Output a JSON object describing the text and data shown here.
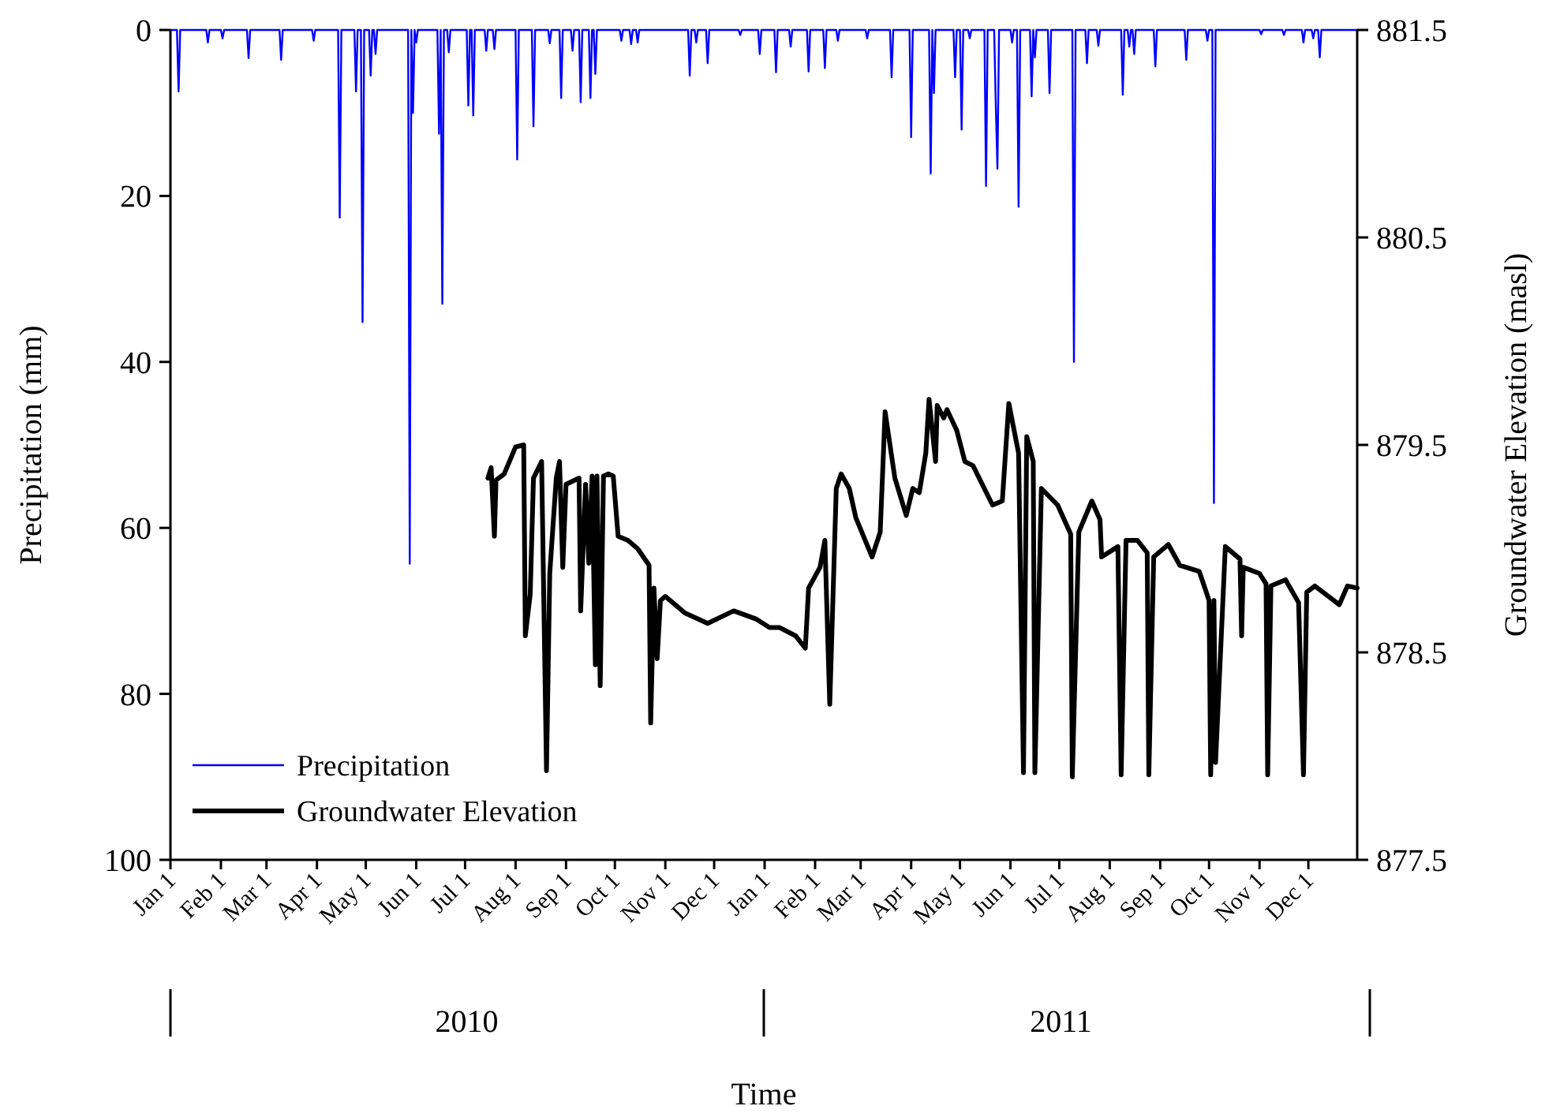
{
  "chart_data": {
    "type": "line",
    "xlabel": "Time",
    "ylabel": "Precipitation (mm)",
    "y2label": "Groundwater Elevation (masl)",
    "xlim": [
      "2010-01-01",
      "2011-12-31"
    ],
    "xticks": [
      {
        "value": "2010-01-01",
        "label": "Jan 1"
      },
      {
        "value": "2010-02-01",
        "label": "Feb 1"
      },
      {
        "value": "2010-03-01",
        "label": "Mar 1"
      },
      {
        "value": "2010-04-01",
        "label": "Apr 1"
      },
      {
        "value": "2010-05-01",
        "label": "May 1"
      },
      {
        "value": "2010-06-01",
        "label": "Jun 1"
      },
      {
        "value": "2010-07-01",
        "label": "Jul 1"
      },
      {
        "value": "2010-08-01",
        "label": "Aug 1"
      },
      {
        "value": "2010-09-01",
        "label": "Sep 1"
      },
      {
        "value": "2010-10-01",
        "label": "Oct 1"
      },
      {
        "value": "2010-11-01",
        "label": "Nov 1"
      },
      {
        "value": "2010-12-01",
        "label": "Dec 1"
      },
      {
        "value": "2011-01-01",
        "label": "Jan 1"
      },
      {
        "value": "2011-02-01",
        "label": "Feb 1"
      },
      {
        "value": "2011-03-01",
        "label": "Mar 1"
      },
      {
        "value": "2011-04-01",
        "label": "Apr 1"
      },
      {
        "value": "2011-05-01",
        "label": "May 1"
      },
      {
        "value": "2011-06-01",
        "label": "Jun 1"
      },
      {
        "value": "2011-07-01",
        "label": "Jul 1"
      },
      {
        "value": "2011-08-01",
        "label": "Aug 1"
      },
      {
        "value": "2011-09-01",
        "label": "Sep 1"
      },
      {
        "value": "2011-10-01",
        "label": "Oct 1"
      },
      {
        "value": "2011-11-01",
        "label": "Nov 1"
      },
      {
        "value": "2011-12-01",
        "label": "Dec 1"
      }
    ],
    "x2lim": [
      "2010-01-01",
      "2011-12-31"
    ],
    "x2ticks": [
      {
        "value": "2010-07-02",
        "label": "2010"
      },
      {
        "value": "2011-07-02",
        "label": "2011"
      }
    ],
    "ylim": [
      100,
      0
    ],
    "yticks": [
      0,
      20,
      40,
      60,
      80,
      100
    ],
    "y2lim": [
      877.5,
      881.5
    ],
    "y2ticks": [
      877.5,
      878.5,
      879.5,
      880.5,
      881.5
    ],
    "grid": false,
    "legend": "bottom left",
    "marker": "none",
    "line_style": "solid",
    "series": [
      {
        "name": "Precipitation",
        "color": "#0000ff",
        "axis": "y",
        "x": [
          "2010-01-01",
          "2010-01-05",
          "2010-01-06",
          "2010-01-07",
          "2010-01-23",
          "2010-01-24",
          "2010-01-25",
          "2010-02-01",
          "2010-02-02",
          "2010-02-03",
          "2010-02-17",
          "2010-02-18",
          "2010-02-19",
          "2010-03-09",
          "2010-03-10",
          "2010-03-11",
          "2010-03-29",
          "2010-03-30",
          "2010-03-31",
          "2010-04-14",
          "2010-04-15",
          "2010-04-16",
          "2010-04-24",
          "2010-04-25",
          "2010-04-26",
          "2010-04-28",
          "2010-04-29",
          "2010-04-30",
          "2010-05-03",
          "2010-05-04",
          "2010-05-05",
          "2010-05-06",
          "2010-05-07",
          "2010-05-08",
          "2010-05-27",
          "2010-05-28",
          "2010-05-29",
          "2010-05-30",
          "2010-05-31",
          "2010-06-01",
          "2010-06-02",
          "2010-06-14",
          "2010-06-15",
          "2010-06-16",
          "2010-06-17",
          "2010-06-18",
          "2010-06-20",
          "2010-06-21",
          "2010-06-22",
          "2010-07-02",
          "2010-07-03",
          "2010-07-04",
          "2010-07-05",
          "2010-07-06",
          "2010-07-07",
          "2010-07-13",
          "2010-07-14",
          "2010-07-15",
          "2010-07-18",
          "2010-07-19",
          "2010-07-20",
          "2010-08-01",
          "2010-08-02",
          "2010-08-03",
          "2010-08-11",
          "2010-08-12",
          "2010-08-13",
          "2010-08-21",
          "2010-08-22",
          "2010-08-23",
          "2010-08-28",
          "2010-08-29",
          "2010-08-30",
          "2010-09-04",
          "2010-09-05",
          "2010-09-06",
          "2010-09-09",
          "2010-09-10",
          "2010-09-11",
          "2010-09-15",
          "2010-09-16",
          "2010-09-17",
          "2010-09-18",
          "2010-09-19",
          "2010-09-20",
          "2010-10-04",
          "2010-10-05",
          "2010-10-06",
          "2010-10-10",
          "2010-10-11",
          "2010-10-12",
          "2010-10-14",
          "2010-10-15",
          "2010-10-16",
          "2010-11-15",
          "2010-11-16",
          "2010-11-17",
          "2010-11-19",
          "2010-11-20",
          "2010-11-21",
          "2010-11-26",
          "2010-11-27",
          "2010-11-28",
          "2010-12-16",
          "2010-12-17",
          "2010-12-18",
          "2010-12-28",
          "2010-12-29",
          "2010-12-30",
          "2011-01-07",
          "2011-01-08",
          "2011-01-09",
          "2011-01-16",
          "2011-01-17",
          "2011-01-18",
          "2011-01-27",
          "2011-01-28",
          "2011-01-29",
          "2011-02-06",
          "2011-02-07",
          "2011-02-08",
          "2011-02-14",
          "2011-02-15",
          "2011-02-16",
          "2011-03-04",
          "2011-03-05",
          "2011-03-06",
          "2011-03-19",
          "2011-03-20",
          "2011-03-21",
          "2011-03-31",
          "2011-04-01",
          "2011-04-02",
          "2011-04-12",
          "2011-04-13",
          "2011-04-14",
          "2011-04-15",
          "2011-04-16",
          "2011-04-27",
          "2011-04-28",
          "2011-04-29",
          "2011-05-01",
          "2011-05-02",
          "2011-05-03",
          "2011-05-06",
          "2011-05-07",
          "2011-05-08",
          "2011-05-16",
          "2011-05-17",
          "2011-05-18",
          "2011-05-22",
          "2011-05-23",
          "2011-05-24",
          "2011-05-25",
          "2011-06-01",
          "2011-06-02",
          "2011-06-03",
          "2011-06-05",
          "2011-06-06",
          "2011-06-07",
          "2011-06-13",
          "2011-06-14",
          "2011-06-15",
          "2011-06-16",
          "2011-06-17",
          "2011-06-24",
          "2011-06-25",
          "2011-06-26",
          "2011-07-09",
          "2011-07-10",
          "2011-07-11",
          "2011-07-17",
          "2011-07-18",
          "2011-07-19",
          "2011-07-24",
          "2011-07-25",
          "2011-07-26",
          "2011-08-08",
          "2011-08-09",
          "2011-08-10",
          "2011-08-12",
          "2011-08-13",
          "2011-08-14",
          "2011-08-15",
          "2011-08-16",
          "2011-08-17",
          "2011-08-28",
          "2011-08-29",
          "2011-08-30",
          "2011-09-16",
          "2011-09-17",
          "2011-09-18",
          "2011-09-29",
          "2011-09-30",
          "2011-10-01",
          "2011-10-03",
          "2011-10-04",
          "2011-10-05",
          "2011-11-01",
          "2011-11-02",
          "2011-11-03",
          "2011-11-15",
          "2011-11-16",
          "2011-11-17",
          "2011-11-27",
          "2011-11-28",
          "2011-11-29",
          "2011-12-03",
          "2011-12-04",
          "2011-12-05",
          "2011-12-07",
          "2011-12-08",
          "2011-12-09",
          "2011-12-31"
        ],
        "values": [
          0,
          0,
          7.4,
          0,
          0,
          1.5,
          0,
          0,
          1,
          0,
          0,
          3.4,
          0,
          0,
          3.6,
          0,
          0,
          1.3,
          0,
          0,
          22.6,
          0,
          0,
          7.4,
          0,
          0,
          35.2,
          0,
          0,
          5.5,
          0,
          0,
          2.9,
          0,
          0,
          64.3,
          0,
          10,
          0,
          1.5,
          0,
          0,
          12.5,
          0,
          33,
          0,
          0,
          2.7,
          0,
          0,
          9.1,
          0,
          0,
          10.3,
          0,
          0,
          2.5,
          0,
          0,
          2.3,
          0,
          0,
          15.6,
          0,
          0,
          11.6,
          0,
          0,
          1.6,
          0,
          0,
          8.2,
          0,
          0,
          2.5,
          0,
          0,
          8.7,
          0,
          0,
          8.2,
          0,
          0,
          5.3,
          0,
          0,
          1.3,
          0,
          0,
          1.7,
          0,
          0,
          1.5,
          0,
          0,
          5.5,
          0,
          0,
          1.5,
          0,
          0,
          4,
          0,
          0,
          0.6,
          0,
          0,
          2.9,
          0,
          0,
          5.1,
          0,
          0,
          2,
          0,
          0,
          5,
          0,
          0,
          4.6,
          0,
          0,
          1.3,
          0,
          0,
          1,
          0,
          0,
          5.7,
          0,
          0,
          12.9,
          0,
          0,
          17.3,
          0,
          7.6,
          0,
          0,
          5.7,
          0,
          0,
          12,
          0,
          0,
          1,
          0,
          0,
          18.8,
          0,
          0,
          9.1,
          16.7,
          0,
          0,
          1.5,
          0,
          0,
          21.3,
          0,
          0,
          8,
          0,
          3.3,
          0,
          0,
          7.6,
          0,
          0,
          40,
          0,
          0,
          4,
          0,
          0,
          1.9,
          0,
          0,
          7.8,
          0,
          0,
          2,
          0,
          0,
          2.9,
          0,
          0,
          4.4,
          0,
          0,
          3.6,
          0,
          0,
          1.3,
          0,
          0,
          57,
          0,
          0,
          0.5,
          0,
          0,
          0.6,
          0,
          0,
          1.5,
          0,
          0,
          1,
          0,
          0,
          3.3,
          0,
          0
        ]
      },
      {
        "name": "Groundwater Elevation",
        "color": "#000000",
        "axis": "y2",
        "x": [
          "2010-07-15",
          "2010-07-17",
          "2010-07-19",
          "2010-07-20",
          "2010-07-25",
          "2010-08-01",
          "2010-08-06",
          "2010-08-07",
          "2010-08-10",
          "2010-08-12",
          "2010-08-17",
          "2010-08-20",
          "2010-08-22",
          "2010-08-26",
          "2010-08-28",
          "2010-08-30",
          "2010-09-01",
          "2010-09-09",
          "2010-09-10",
          "2010-09-13",
          "2010-09-15",
          "2010-09-17",
          "2010-09-19",
          "2010-09-20",
          "2010-09-22",
          "2010-09-24",
          "2010-09-27",
          "2010-09-30",
          "2010-10-03",
          "2010-10-09",
          "2010-10-15",
          "2010-10-22",
          "2010-10-23",
          "2010-10-25",
          "2010-10-27",
          "2010-10-29",
          "2010-11-01",
          "2010-11-13",
          "2010-11-27",
          "2010-12-13",
          "2010-12-27",
          "2011-01-04",
          "2011-01-10",
          "2011-01-20",
          "2011-01-26",
          "2011-01-28",
          "2011-02-04",
          "2011-02-07",
          "2011-02-10",
          "2011-02-14",
          "2011-02-17",
          "2011-02-22",
          "2011-02-26",
          "2011-03-08",
          "2011-03-13",
          "2011-03-16",
          "2011-03-22",
          "2011-03-29",
          "2011-04-02",
          "2011-04-06",
          "2011-04-10",
          "2011-04-12",
          "2011-04-16",
          "2011-04-17",
          "2011-04-21",
          "2011-04-23",
          "2011-04-29",
          "2011-05-04",
          "2011-05-09",
          "2011-05-21",
          "2011-05-27",
          "2011-05-31",
          "2011-06-06",
          "2011-06-09",
          "2011-06-11",
          "2011-06-15",
          "2011-06-16",
          "2011-06-20",
          "2011-06-30",
          "2011-07-08",
          "2011-07-09",
          "2011-07-13",
          "2011-07-21",
          "2011-07-26",
          "2011-07-27",
          "2011-08-06",
          "2011-08-08",
          "2011-08-11",
          "2011-08-18",
          "2011-08-24",
          "2011-08-25",
          "2011-08-28",
          "2011-09-06",
          "2011-09-13",
          "2011-09-25",
          "2011-10-01",
          "2011-10-02",
          "2011-10-04",
          "2011-10-05",
          "2011-10-11",
          "2011-10-20",
          "2011-10-21",
          "2011-10-22",
          "2011-11-01",
          "2011-11-05",
          "2011-11-06",
          "2011-11-08",
          "2011-11-17",
          "2011-11-25",
          "2011-11-28",
          "2011-11-30",
          "2011-12-05",
          "2011-12-20",
          "2011-12-25",
          "2011-12-31"
        ],
        "values": [
          879.34,
          879.39,
          879.06,
          879.33,
          879.36,
          879.49,
          879.5,
          878.58,
          878.78,
          879.34,
          879.42,
          877.93,
          878.88,
          879.34,
          879.42,
          878.91,
          879.31,
          879.34,
          878.7,
          879.31,
          878.93,
          879.35,
          878.44,
          879.35,
          878.34,
          879.35,
          879.36,
          879.35,
          879.06,
          879.04,
          879.0,
          878.92,
          878.16,
          878.81,
          878.47,
          878.75,
          878.77,
          878.69,
          878.64,
          878.7,
          878.66,
          878.62,
          878.62,
          878.58,
          878.52,
          878.81,
          878.91,
          879.04,
          878.25,
          879.29,
          879.36,
          879.29,
          879.15,
          878.96,
          879.08,
          879.66,
          879.34,
          879.16,
          879.29,
          879.27,
          879.46,
          879.72,
          879.42,
          879.69,
          879.63,
          879.67,
          879.57,
          879.42,
          879.4,
          879.21,
          879.23,
          879.7,
          879.46,
          877.92,
          879.54,
          879.42,
          877.92,
          879.29,
          879.21,
          879.07,
          877.9,
          879.08,
          879.23,
          879.14,
          878.96,
          879.01,
          877.91,
          879.04,
          879.04,
          878.98,
          877.91,
          878.96,
          879.02,
          878.92,
          878.89,
          878.75,
          877.91,
          878.75,
          877.97,
          879.01,
          878.95,
          878.58,
          878.91,
          878.88,
          878.83,
          877.91,
          878.82,
          878.85,
          878.74,
          877.91,
          878.79,
          878.82,
          878.73,
          878.82,
          878.81
        ]
      }
    ]
  }
}
